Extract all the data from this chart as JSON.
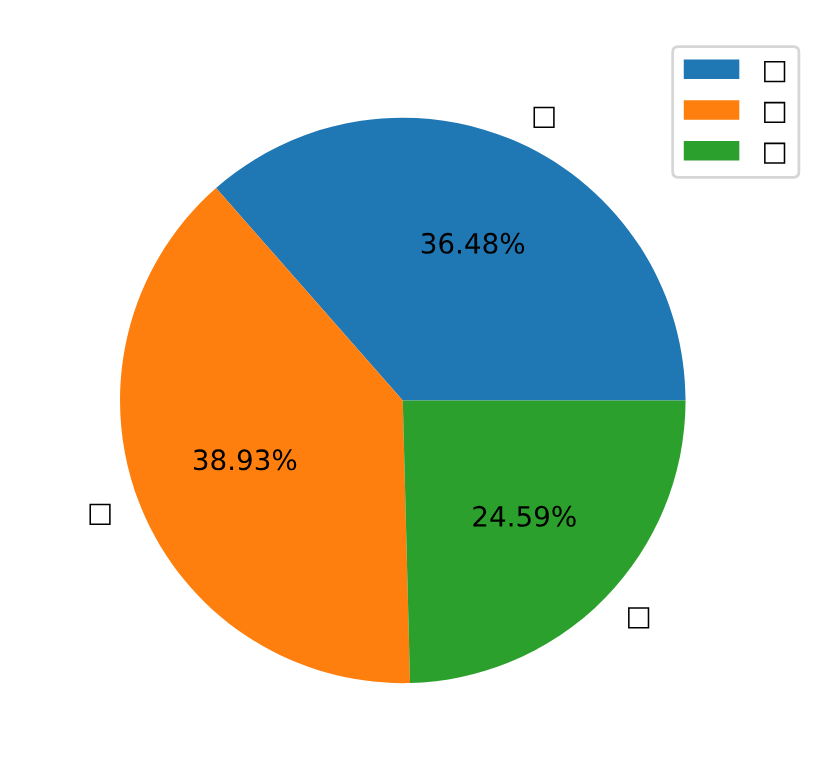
{
  "chart_data": {
    "type": "pie",
    "categories": [
      "□",
      "□",
      "□"
    ],
    "values": [
      36.48,
      38.93,
      24.59
    ],
    "colors": [
      "#1f77b4",
      "#ff7f0e",
      "#2ca02c"
    ],
    "value_labels": [
      "36.48%",
      "38.93%",
      "24.59%"
    ],
    "legend": "top right"
  }
}
